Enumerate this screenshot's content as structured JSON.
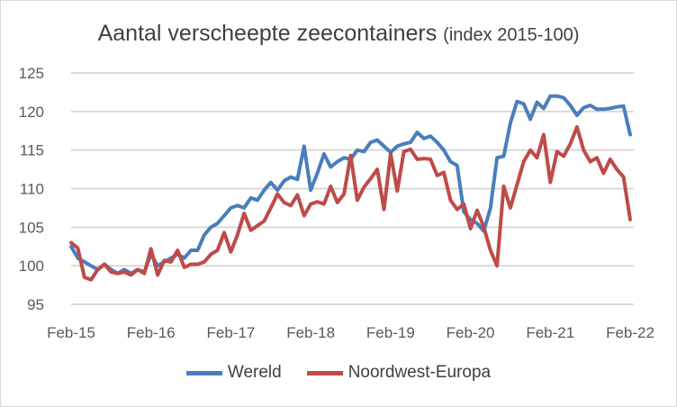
{
  "chart_data": {
    "type": "line",
    "title": "Aantal verscheepte zeecontainers",
    "subtitle": "(index 2015-100)",
    "xlabel": "",
    "ylabel": "",
    "ylim": [
      95,
      125
    ],
    "yticks": [
      "95",
      "100",
      "105",
      "110",
      "115",
      "120",
      "125"
    ],
    "xticks": [
      "Feb-15",
      "Feb-16",
      "Feb-17",
      "Feb-18",
      "Feb-19",
      "Feb-20",
      "Feb-21",
      "Feb-22"
    ],
    "x_start": "Feb-15",
    "x_frequency": "monthly",
    "grid": true,
    "legend_position": "bottom",
    "series": [
      {
        "name": "Wereld",
        "color": "#4a7ebb",
        "values": [
          102.5,
          101,
          100.5,
          100,
          99.5,
          100.2,
          99.5,
          99,
          99.5,
          99,
          99.5,
          99.2,
          101.5,
          100,
          100.5,
          101,
          101.5,
          101,
          102,
          102,
          104,
          105,
          105.5,
          106.5,
          107.5,
          107.8,
          107.5,
          108.8,
          108.5,
          109.8,
          110.8,
          109.8,
          111,
          111.5,
          111.2,
          115.5,
          109.8,
          112,
          114.5,
          112.8,
          113.5,
          114,
          113.8,
          115,
          114.8,
          116,
          116.3,
          115.5,
          114.7,
          115.5,
          115.8,
          116,
          117.3,
          116.5,
          116.8,
          116,
          115,
          113.5,
          113,
          107,
          106,
          105.5,
          104.5,
          107.5,
          114,
          114.2,
          118.5,
          121.3,
          121,
          119,
          121.2,
          120.4,
          122,
          122,
          121.8,
          120.8,
          119.5,
          120.5,
          120.8,
          120.3,
          120.3,
          120.4,
          120.6,
          120.7,
          117
        ]
      },
      {
        "name": "Noordwest-Europa",
        "color": "#be4b48",
        "values": [
          103,
          102.3,
          98.5,
          98.2,
          99.5,
          100.2,
          99.2,
          99,
          99.2,
          98.8,
          99.5,
          99,
          102.2,
          98.8,
          100.7,
          100.5,
          102,
          99.8,
          100.2,
          100.2,
          100.5,
          101.5,
          102,
          104.3,
          101.8,
          104,
          106.8,
          104.6,
          105.2,
          105.8,
          107.5,
          109.3,
          108.2,
          107.8,
          109.2,
          106.5,
          108,
          108.3,
          108,
          110.3,
          108.2,
          109.3,
          114.3,
          108.5,
          110.2,
          111.3,
          112.5,
          107.3,
          114.5,
          109.7,
          114.8,
          115.1,
          113.8,
          113.9,
          113.8,
          111.7,
          112.1,
          108.5,
          107.3,
          108,
          104.8,
          107.2,
          105,
          102,
          100,
          110.3,
          107.5,
          110.5,
          113.5,
          115,
          114,
          117,
          110.8,
          114.8,
          114.2,
          115.8,
          118,
          115,
          113.5,
          114,
          112,
          113.8,
          112.5,
          111.5,
          106
        ]
      }
    ]
  }
}
